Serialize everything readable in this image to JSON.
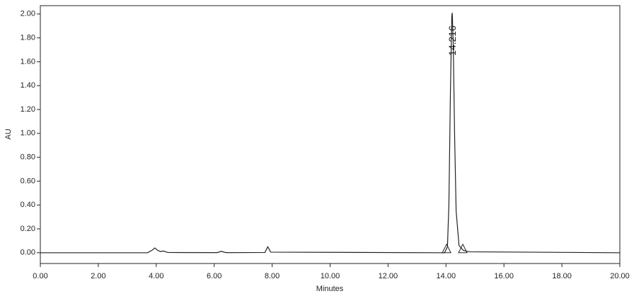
{
  "chart_data": {
    "type": "line",
    "x_label": "Minutes",
    "y_label": "AU",
    "annotations": [
      {
        "text": "14.216"
      }
    ],
    "x": [
      0,
      3.7,
      3.85,
      3.95,
      4.05,
      4.15,
      4.25,
      4.4,
      6.1,
      6.25,
      6.4,
      7.75,
      7.85,
      7.95,
      10.3,
      13.95,
      14.05,
      14.1,
      14.15,
      14.2,
      14.216,
      14.25,
      14.3,
      14.35,
      14.45,
      14.6,
      14.8,
      20
    ],
    "series": [
      {
        "color": "#222222",
        "values": [
          0,
          0,
          0.02,
          0.04,
          0.02,
          0.01,
          0.015,
          0.002,
          0.001,
          0.012,
          0.001,
          0.002,
          0.05,
          0.005,
          0.003,
          0,
          0.05,
          0.4,
          1.3,
          1.98,
          2.01,
          1.75,
          0.95,
          0.35,
          0.06,
          0.02,
          0.008,
          0
        ]
      }
    ],
    "peak_bounds": [
      14.02,
      14.58
    ],
    "xlim": [
      0,
      20
    ],
    "ylim": [
      -0.09,
      2.07
    ],
    "xticks": [
      {
        "value": 0,
        "label": "0.00"
      },
      {
        "value": 2,
        "label": "2.00"
      },
      {
        "value": 4,
        "label": "4.00"
      },
      {
        "value": 6,
        "label": "6.00"
      },
      {
        "value": 8,
        "label": "8.00"
      },
      {
        "value": 10,
        "label": "10.00"
      },
      {
        "value": 12,
        "label": "12.00"
      },
      {
        "value": 14,
        "label": "14.00"
      },
      {
        "value": 16,
        "label": "16.00"
      },
      {
        "value": 18,
        "label": "18.00"
      },
      {
        "value": 20,
        "label": "20.00"
      }
    ],
    "yticks": [
      {
        "value": 0,
        "label": "0.00"
      },
      {
        "value": 0.2,
        "label": "0.20"
      },
      {
        "value": 0.4,
        "label": "0.40"
      },
      {
        "value": 0.6,
        "label": "0.60"
      },
      {
        "value": 0.8,
        "label": "0.80"
      },
      {
        "value": 1,
        "label": "1.00"
      },
      {
        "value": 1.2,
        "label": "1.20"
      },
      {
        "value": 1.4,
        "label": "1.40"
      },
      {
        "value": 1.6,
        "label": "1.60"
      },
      {
        "value": 1.8,
        "label": "1.80"
      },
      {
        "value": 2,
        "label": "2.00"
      }
    ],
    "grid": false
  }
}
